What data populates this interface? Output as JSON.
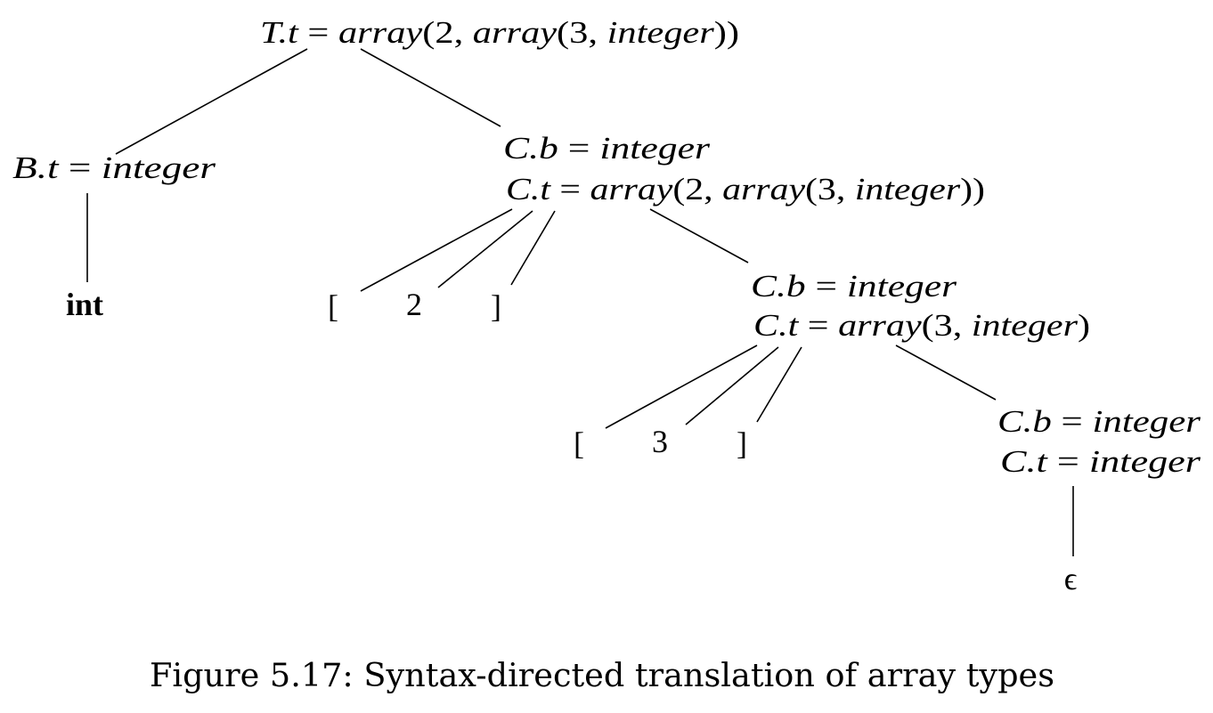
{
  "tree": {
    "root": {
      "lhs": "T.t",
      "eq": "=",
      "rhs": {
        "f1": "array",
        "p1": "(2, ",
        "f2": "array",
        "p2": "(3, ",
        "arg": "integer",
        "close": "))"
      }
    },
    "b_node": {
      "lhs": "B.t",
      "eq": "=",
      "rhs": "integer"
    },
    "int_leaf": "int",
    "c1": {
      "b_lhs": "C.b",
      "b_eq": "=",
      "b_rhs": "integer",
      "t_lhs": "C.t",
      "t_eq": "=",
      "t_rhs": {
        "f1": "array",
        "p1": "(2, ",
        "f2": "array",
        "p2": "(3, ",
        "arg": "integer",
        "close": "))"
      },
      "lbracket": "[",
      "num": "2",
      "rbracket": "]"
    },
    "c2": {
      "b_lhs": "C.b",
      "b_eq": "=",
      "b_rhs": "integer",
      "t_lhs": "C.t",
      "t_eq": "=",
      "t_rhs": {
        "f1": "array",
        "p1": "(3, ",
        "arg": "integer",
        "close": ")"
      },
      "lbracket": "[",
      "num": "3",
      "rbracket": "]"
    },
    "c3": {
      "b_lhs": "C.b",
      "b_eq": "=",
      "b_rhs": "integer",
      "t_lhs": "C.t",
      "t_eq": "=",
      "t_rhs": "integer"
    },
    "epsilon": "ϵ"
  },
  "caption": "Figure 5.17: Syntax-directed translation of array types"
}
